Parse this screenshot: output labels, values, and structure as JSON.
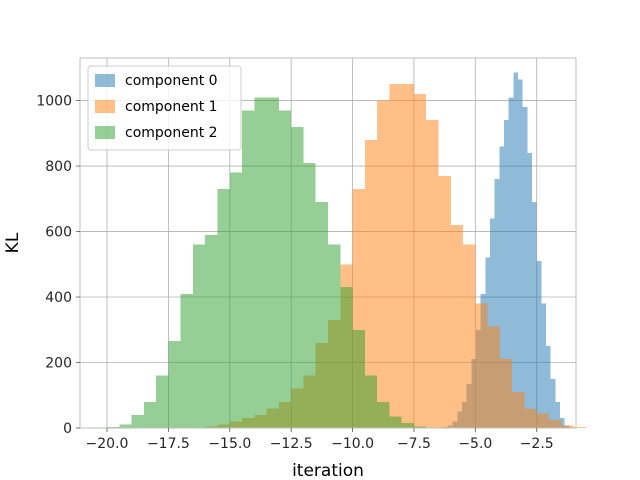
{
  "chart_data": {
    "type": "histogram",
    "xlabel": "iteration",
    "ylabel": "KL",
    "xlim": [
      -21.1,
      -0.9
    ],
    "ylim": [
      0,
      1130
    ],
    "xticks": [
      -20.0,
      -17.5,
      -15.0,
      -12.5,
      -10.0,
      -7.5,
      -5.0,
      -2.5
    ],
    "xtick_labels": [
      "−20.0",
      "−17.5",
      "−15.0",
      "−12.5",
      "−10.0",
      "−7.5",
      "−5.0",
      "−2.5"
    ],
    "yticks": [
      0,
      200,
      400,
      600,
      800,
      1000
    ],
    "ytick_labels": [
      "0",
      "200",
      "400",
      "600",
      "800",
      "1000"
    ],
    "grid": true,
    "legend_position": "top-left",
    "series": [
      {
        "name": "component 0",
        "color": "#1f77b4",
        "opacity": 0.5,
        "bin_width": 0.19,
        "bins": [
          [
            -6.3,
            3
          ],
          [
            -6.11,
            8
          ],
          [
            -5.92,
            20
          ],
          [
            -5.73,
            50
          ],
          [
            -5.54,
            80
          ],
          [
            -5.35,
            135
          ],
          [
            -5.16,
            210
          ],
          [
            -4.97,
            300
          ],
          [
            -4.78,
            410
          ],
          [
            -4.59,
            520
          ],
          [
            -4.4,
            640
          ],
          [
            -4.21,
            760
          ],
          [
            -4.02,
            860
          ],
          [
            -3.83,
            940
          ],
          [
            -3.64,
            1010
          ],
          [
            -3.45,
            1085
          ],
          [
            -3.26,
            1065
          ],
          [
            -3.07,
            980
          ],
          [
            -2.88,
            840
          ],
          [
            -2.69,
            690
          ],
          [
            -2.5,
            510
          ],
          [
            -2.31,
            380
          ],
          [
            -2.12,
            250
          ],
          [
            -1.93,
            150
          ],
          [
            -1.74,
            80
          ],
          [
            -1.55,
            30
          ],
          [
            -1.36,
            8
          ]
        ]
      },
      {
        "name": "component 1",
        "color": "#ff7f0e",
        "opacity": 0.5,
        "bin_width": 0.5,
        "bins": [
          [
            -16.0,
            5
          ],
          [
            -15.5,
            10
          ],
          [
            -15.0,
            20
          ],
          [
            -14.5,
            30
          ],
          [
            -14.0,
            40
          ],
          [
            -13.5,
            60
          ],
          [
            -13.0,
            80
          ],
          [
            -12.5,
            120
          ],
          [
            -12.0,
            160
          ],
          [
            -11.5,
            260
          ],
          [
            -11.0,
            330
          ],
          [
            -10.5,
            500
          ],
          [
            -10.0,
            730
          ],
          [
            -9.5,
            880
          ],
          [
            -9.0,
            1000
          ],
          [
            -8.5,
            1050
          ],
          [
            -8.0,
            1050
          ],
          [
            -7.5,
            1020
          ],
          [
            -7.0,
            940
          ],
          [
            -6.5,
            770
          ],
          [
            -6.0,
            620
          ],
          [
            -5.5,
            560
          ],
          [
            -5.0,
            380
          ],
          [
            -4.5,
            310
          ],
          [
            -4.0,
            210
          ],
          [
            -3.5,
            110
          ],
          [
            -3.0,
            60
          ],
          [
            -2.5,
            45
          ],
          [
            -2.0,
            25
          ],
          [
            -1.5,
            8
          ],
          [
            -1.0,
            3
          ]
        ]
      },
      {
        "name": "component 2",
        "color": "#2ca02c",
        "opacity": 0.5,
        "bin_width": 0.5,
        "bins": [
          [
            -20.0,
            3
          ],
          [
            -19.5,
            10
          ],
          [
            -19.0,
            40
          ],
          [
            -18.5,
            80
          ],
          [
            -18.0,
            160
          ],
          [
            -17.5,
            265
          ],
          [
            -17.0,
            410
          ],
          [
            -16.5,
            560
          ],
          [
            -16.0,
            590
          ],
          [
            -15.5,
            730
          ],
          [
            -15.0,
            780
          ],
          [
            -14.5,
            970
          ],
          [
            -14.0,
            1010
          ],
          [
            -13.5,
            1010
          ],
          [
            -13.0,
            970
          ],
          [
            -12.5,
            920
          ],
          [
            -12.0,
            810
          ],
          [
            -11.5,
            690
          ],
          [
            -11.0,
            560
          ],
          [
            -10.5,
            430
          ],
          [
            -10.0,
            300
          ],
          [
            -9.5,
            160
          ],
          [
            -9.0,
            80
          ],
          [
            -8.5,
            35
          ],
          [
            -8.0,
            15
          ],
          [
            -7.5,
            5
          ]
        ]
      }
    ]
  }
}
